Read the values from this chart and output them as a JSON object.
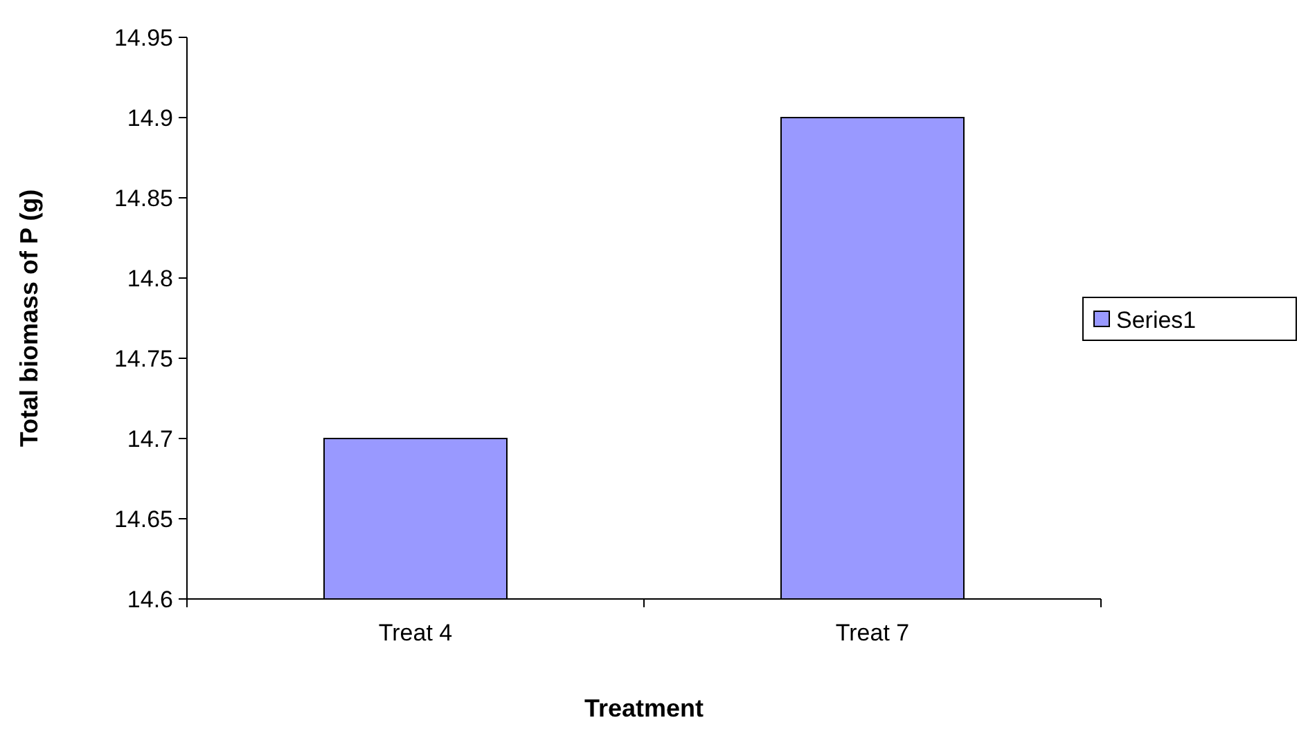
{
  "chart_data": {
    "type": "bar",
    "xlabel": "Treatment",
    "ylabel": "Total biomass of P (g)",
    "categories": [
      "Treat 4",
      "Treat 7"
    ],
    "series": [
      {
        "name": "Series1",
        "color": "#9999ff",
        "values": [
          14.7,
          14.9
        ]
      }
    ],
    "ylim": [
      14.6,
      14.95
    ],
    "yticks": [
      14.6,
      14.65,
      14.7,
      14.75,
      14.8,
      14.85,
      14.9,
      14.95
    ],
    "legend": "right"
  }
}
